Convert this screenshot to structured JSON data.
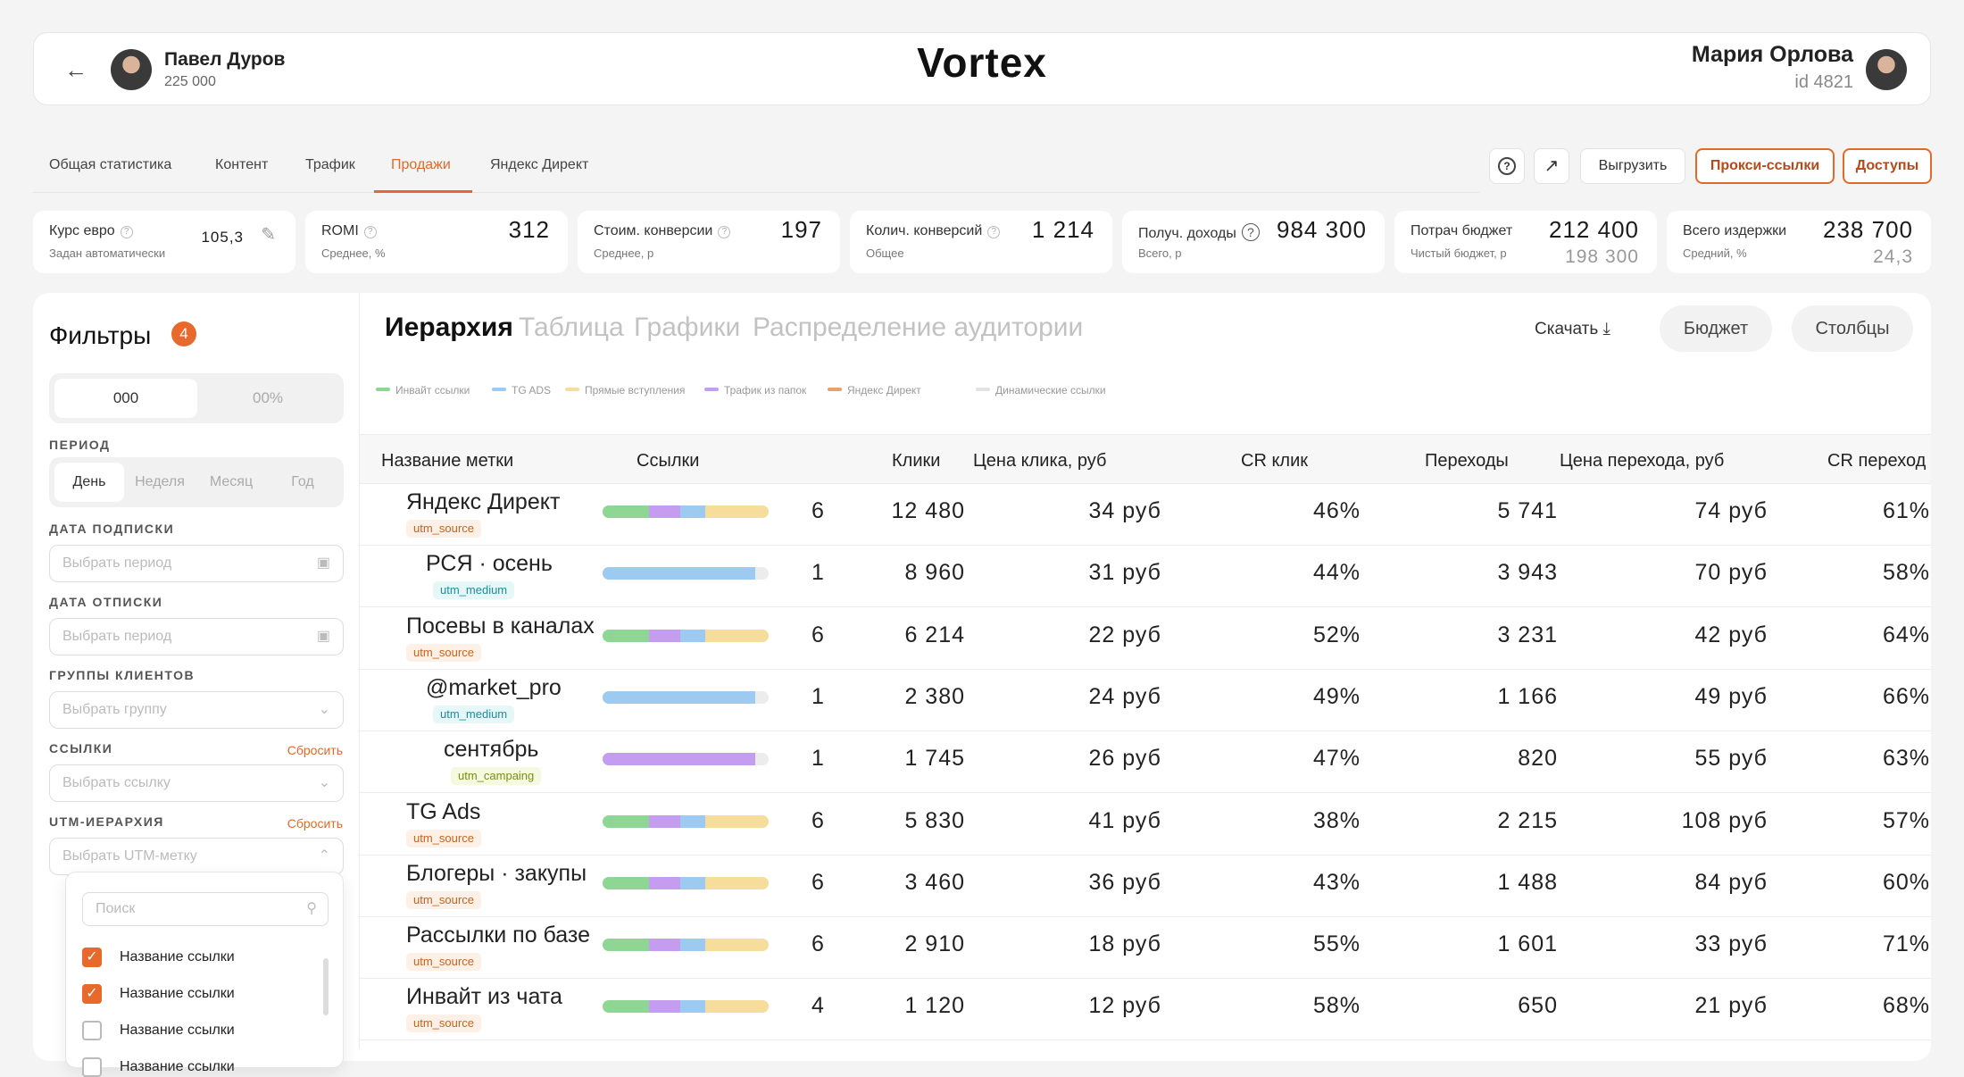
{
  "header": {
    "back_icon": "arrow-left-icon",
    "user_left": {
      "name": "Павел Дуров",
      "subtitle": "225 000"
    },
    "brand": "Vortex",
    "user_right": {
      "name": "Мария Орлова",
      "id": "id 4821"
    }
  },
  "tabs": [
    {
      "label": "Общая статистика"
    },
    {
      "label": "Контент"
    },
    {
      "label": "Трафик"
    },
    {
      "label": "Продажи",
      "active": true
    },
    {
      "label": "Яндекс Директ"
    }
  ],
  "toolbar": {
    "help_icon": "?",
    "export_icon": "share-icon",
    "unload_label": "Выгрузить",
    "proxy_label": "Прокси-ссылки",
    "access_label": "Доступы"
  },
  "kpis": [
    {
      "title": "Курс евро",
      "sub": "Задан автоматически",
      "value": "105,3"
    },
    {
      "title": "ROMI",
      "sub": "Среднее, %",
      "value": "312"
    },
    {
      "title": "Стоим. конверсии",
      "sub": "Среднее, р",
      "value": "197"
    },
    {
      "title": "Колич. конверсий",
      "sub": "Общее",
      "value": "1 214"
    },
    {
      "title": "Получ. доходы",
      "sub": "Всего, р",
      "value": "984 300"
    },
    {
      "title": "Потрач бюджет",
      "sub": "Чистый бюджет, р",
      "value": "212 400",
      "value2": "198 300"
    },
    {
      "title": "Всего издержки",
      "sub": "Средний, %",
      "value": "238 700",
      "value2": "24,3"
    }
  ],
  "filters": {
    "title": "Фильтры",
    "badge": "4",
    "mode": [
      "000",
      "00%"
    ],
    "period_label": "ПЕРИОД",
    "period": [
      "День",
      "Неделя",
      "Месяц",
      "Год"
    ],
    "sub_date_label": "ДАТА ПОДПИСКИ",
    "sub_date_placeholder": "Выбрать период",
    "unsub_date_label": "ДАТА ОТПИСКИ",
    "unsub_date_placeholder": "Выбрать период",
    "groups_label": "ГРУППЫ КЛИЕНТОВ",
    "groups_placeholder": "Выбрать группу",
    "links_label": "ССЫЛКИ",
    "links_reset": "Сбросить",
    "links_placeholder": "Выбрать ссылку",
    "utm_label": "UTM-ИЕРАРХИЯ",
    "utm_reset": "Сбросить",
    "utm_placeholder": "Выбрать UTM-метку",
    "dropdown": {
      "search_placeholder": "Поиск",
      "items": [
        {
          "label": "Название ссылки",
          "checked": true
        },
        {
          "label": "Название ссылки",
          "checked": true
        },
        {
          "label": "Название ссылки",
          "checked": false
        },
        {
          "label": "Название ссылки",
          "checked": false
        }
      ]
    }
  },
  "view_tabs": [
    {
      "label": "Иерархия",
      "active": true
    },
    {
      "label": "Таблица"
    },
    {
      "label": "Графики"
    },
    {
      "label": "Распределение аудитории"
    }
  ],
  "actions": {
    "download": "Скачать",
    "budget": "Бюджет",
    "columns": "Столбцы"
  },
  "legend": [
    {
      "label": "Инвайт ссылки",
      "color": "#8fd694"
    },
    {
      "label": "TG ADS",
      "color": "#9ccaf0"
    },
    {
      "label": "Прямые вступления",
      "color": "#f6dd9c"
    },
    {
      "label": "Трафик из папок",
      "color": "#c49cf0"
    },
    {
      "label": "Яндекс Директ",
      "color": "#e8a06c"
    },
    {
      "label": "Динамические ссылки",
      "color": "#e2e2e2"
    }
  ],
  "table": {
    "columns": [
      "Название метки",
      "Ссылки",
      "Клики",
      "Цена клика, руб",
      "CR клик",
      "Переходы",
      "Цена перехода, руб",
      "CR переход"
    ],
    "rows": [
      {
        "name": "Яндекс Директ",
        "tag": "utm_source",
        "tagtype": "src",
        "indent": 0,
        "bar": "mixed",
        "links": "6",
        "clicks": "12 480",
        "click_price": "34 руб",
        "cr_click": "46%",
        "transitions": "5 741",
        "trans_price": "74 руб",
        "cr_trans": "61%"
      },
      {
        "name": "РСЯ · осень",
        "tag": "utm_medium",
        "tagtype": "med",
        "indent": 1,
        "bar": "blue",
        "links": "1",
        "clicks": "8 960",
        "click_price": "31 руб",
        "cr_click": "44%",
        "transitions": "3 943",
        "trans_price": "70 руб",
        "cr_trans": "58%"
      },
      {
        "name": "Посевы в каналах",
        "tag": "utm_source",
        "tagtype": "src",
        "indent": 0,
        "bar": "mixed",
        "links": "6",
        "clicks": "6 214",
        "click_price": "22 руб",
        "cr_click": "52%",
        "transitions": "3 231",
        "trans_price": "42 руб",
        "cr_trans": "64%"
      },
      {
        "name": "@market_pro",
        "tag": "utm_medium",
        "tagtype": "med",
        "indent": 1,
        "bar": "blue",
        "links": "1",
        "clicks": "2 380",
        "click_price": "24 руб",
        "cr_click": "49%",
        "transitions": "1 166",
        "trans_price": "49 руб",
        "cr_trans": "66%"
      },
      {
        "name": "сентябрь",
        "tag": "utm_campaing",
        "tagtype": "cmp",
        "indent": 2,
        "bar": "purple",
        "links": "1",
        "clicks": "1 745",
        "click_price": "26 руб",
        "cr_click": "47%",
        "transitions": "820",
        "trans_price": "55 руб",
        "cr_trans": "63%"
      },
      {
        "name": "TG Ads",
        "tag": "utm_source",
        "tagtype": "src",
        "indent": 0,
        "bar": "mixed",
        "links": "6",
        "clicks": "5 830",
        "click_price": "41 руб",
        "cr_click": "38%",
        "transitions": "2 215",
        "trans_price": "108 руб",
        "cr_trans": "57%"
      },
      {
        "name": "Блогеры · закупы",
        "tag": "utm_source",
        "tagtype": "src",
        "indent": 0,
        "bar": "mixed",
        "links": "6",
        "clicks": "3 460",
        "click_price": "36 руб",
        "cr_click": "43%",
        "transitions": "1 488",
        "trans_price": "84 руб",
        "cr_trans": "60%"
      },
      {
        "name": "Рассылки по базе",
        "tag": "utm_source",
        "tagtype": "src",
        "indent": 0,
        "bar": "mixed",
        "links": "6",
        "clicks": "2 910",
        "click_price": "18 руб",
        "cr_click": "55%",
        "transitions": "1 601",
        "trans_price": "33 руб",
        "cr_trans": "71%"
      },
      {
        "name": "Инвайт из чата",
        "tag": "utm_source",
        "tagtype": "src",
        "indent": 0,
        "bar": "mixed",
        "links": "4",
        "clicks": "1 120",
        "click_price": "12 руб",
        "cr_click": "58%",
        "transitions": "650",
        "trans_price": "21 руб",
        "cr_trans": "68%"
      }
    ]
  }
}
